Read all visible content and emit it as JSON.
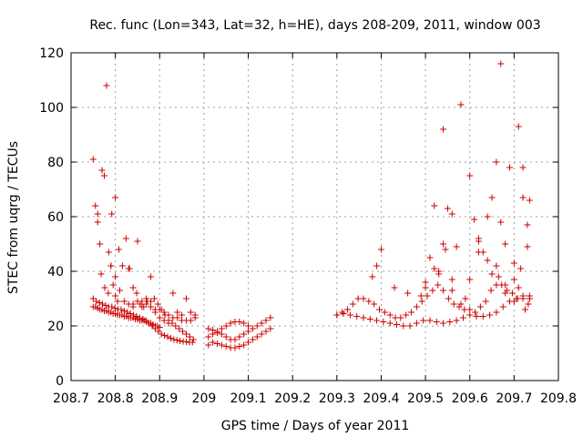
{
  "chart_data": {
    "type": "scatter",
    "title": "Rec. func (Lon=343, Lat=32, h=HE), days 208-209, 2011, window 003",
    "xlabel": "GPS time / Days of year 2011",
    "ylabel": "STEC from uqrg / TECUs",
    "xlim": [
      208.7,
      209.8
    ],
    "ylim": [
      0,
      120
    ],
    "xticks": [
      "208.7",
      "208.8",
      "208.9",
      "209",
      "209.1",
      "209.2",
      "209.3",
      "209.4",
      "209.5",
      "209.6",
      "209.7",
      "209.8"
    ],
    "yticks": [
      "0",
      "20",
      "40",
      "60",
      "80",
      "100",
      "120"
    ],
    "grid": true,
    "marker": "+",
    "color": "#cc0000",
    "series": [
      {
        "x": [
          208.75,
          208.755,
          208.76,
          208.765,
          208.77,
          208.775,
          208.78,
          208.785,
          208.79,
          208.795,
          208.8,
          208.805,
          208.81,
          208.815,
          208.82,
          208.825,
          208.83,
          208.835,
          208.84,
          208.845,
          208.85,
          208.855,
          208.86,
          208.865,
          208.87,
          208.875,
          208.88,
          208.885,
          208.89,
          208.895,
          208.9
        ],
        "y": [
          27,
          27,
          26.5,
          26,
          26,
          25.5,
          25.5,
          25,
          25,
          24.5,
          24.5,
          24,
          24,
          24,
          23.5,
          23.5,
          23,
          23,
          23,
          22.5,
          22.5,
          22,
          22,
          22,
          21.5,
          21,
          21,
          20.5,
          20,
          20,
          19.5
        ]
      },
      {
        "x": [
          208.75,
          208.757,
          208.764,
          208.771,
          208.778,
          208.785,
          208.792,
          208.799,
          208.806,
          208.813,
          208.82,
          208.827,
          208.834,
          208.841,
          208.848,
          208.855,
          208.862,
          208.869,
          208.876,
          208.883,
          208.89,
          208.897,
          208.904,
          208.911,
          208.918,
          208.925,
          208.932,
          208.939,
          208.946,
          208.953,
          208.96,
          208.967,
          208.974
        ],
        "y": [
          30,
          29,
          28.5,
          28,
          27.5,
          27,
          27,
          26.5,
          26,
          26,
          25.5,
          25,
          24.5,
          24,
          23.5,
          23,
          22.5,
          22,
          21,
          20,
          19,
          18,
          17,
          16.5,
          16,
          15.5,
          15,
          14.8,
          14.5,
          14.3,
          14.2,
          14,
          14
        ]
      },
      {
        "x": [
          208.75,
          208.755,
          208.76,
          208.765,
          208.77,
          208.775,
          208.78,
          208.785,
          208.79,
          208.795,
          208.8,
          208.805
        ],
        "y": [
          81,
          64,
          58,
          50,
          77,
          75,
          108,
          47,
          42,
          35,
          31,
          29
        ]
      },
      {
        "x": [
          208.76,
          208.768,
          208.776,
          208.784,
          208.792,
          208.8,
          208.808,
          208.816,
          208.824,
          208.832,
          208.84,
          208.848,
          208.856,
          208.864,
          208.872,
          208.88,
          208.888,
          208.896,
          208.904,
          208.912,
          208.92,
          208.928,
          208.936,
          208.944,
          208.952,
          208.96,
          208.968,
          208.976
        ],
        "y": [
          61,
          39,
          34,
          32,
          61,
          67,
          48,
          42,
          52,
          41,
          34,
          32,
          28,
          27,
          29,
          38,
          30,
          28,
          26,
          24,
          22,
          21,
          20,
          19,
          18,
          17,
          16,
          15
        ]
      },
      {
        "x": [
          208.79,
          208.8,
          208.81,
          208.82,
          208.83,
          208.84,
          208.85,
          208.86,
          208.87,
          208.88,
          208.89,
          208.9,
          208.91,
          208.92,
          208.93,
          208.94,
          208.95,
          208.96,
          208.97,
          208.98
        ],
        "y": [
          42,
          38,
          33,
          29,
          28,
          27,
          51,
          29,
          28,
          27,
          25,
          23,
          22,
          21,
          32,
          25,
          24,
          30,
          22,
          23
        ]
      },
      {
        "x": [
          208.83,
          208.84,
          208.85,
          208.86,
          208.87,
          208.88,
          208.89,
          208.9,
          208.91,
          208.92,
          208.93,
          208.94,
          208.95,
          208.96,
          208.97,
          208.98
        ],
        "y": [
          41,
          28,
          29,
          27,
          30,
          29,
          26,
          26,
          25,
          24,
          23,
          23,
          22,
          22,
          25,
          24
        ]
      },
      {
        "x": [
          209.01,
          209.02,
          209.03,
          209.04,
          209.05,
          209.06,
          209.07,
          209.08,
          209.09,
          209.1,
          209.11,
          209.12,
          209.13,
          209.14,
          209.15
        ],
        "y": [
          13,
          14,
          13.5,
          13,
          12.5,
          12,
          12,
          12.5,
          13,
          14,
          15,
          16,
          17,
          18,
          19
        ]
      },
      {
        "x": [
          209.01,
          209.02,
          209.03,
          209.04,
          209.05,
          209.06,
          209.07,
          209.08,
          209.09,
          209.1,
          209.11,
          209.12,
          209.13,
          209.14,
          209.15
        ],
        "y": [
          16,
          17,
          18,
          19,
          20,
          21,
          21.5,
          21.5,
          21,
          20,
          19,
          20,
          21,
          22,
          23
        ]
      },
      {
        "x": [
          209.01,
          209.02,
          209.03,
          209.04,
          209.05,
          209.06,
          209.07,
          209.08,
          209.09,
          209.1
        ],
        "y": [
          19,
          18.5,
          17.5,
          17,
          16,
          15,
          15,
          16,
          17,
          18
        ]
      },
      {
        "x": [
          209.3,
          209.315,
          209.33,
          209.345,
          209.36,
          209.375,
          209.39,
          209.405,
          209.42,
          209.435,
          209.45,
          209.465,
          209.48,
          209.495,
          209.51,
          209.525,
          209.54,
          209.555,
          209.57,
          209.585,
          209.6,
          209.615,
          209.63,
          209.645,
          209.66,
          209.675,
          209.69,
          209.705,
          209.72,
          209.735
        ],
        "y": [
          24,
          24.5,
          24,
          23.5,
          23,
          22.5,
          22,
          21.5,
          21,
          20.5,
          20,
          20,
          21,
          22,
          22,
          21.5,
          21,
          21.5,
          22,
          23,
          24,
          23.5,
          23.5,
          24,
          25,
          27,
          29,
          30,
          31,
          30
        ]
      },
      {
        "x": [
          209.3,
          209.312,
          209.324,
          209.336,
          209.348,
          209.36,
          209.372,
          209.384,
          209.396,
          209.408,
          209.42,
          209.432,
          209.444,
          209.456,
          209.468,
          209.48,
          209.492,
          209.504,
          209.516,
          209.528,
          209.54,
          209.552,
          209.564,
          209.576,
          209.588,
          209.6,
          209.612,
          209.624,
          209.636,
          209.648,
          209.66,
          209.672,
          209.684,
          209.696,
          209.708,
          209.72,
          209.732
        ],
        "y": [
          24,
          25,
          26,
          28,
          30,
          30,
          29,
          28,
          26,
          25,
          24,
          23,
          23,
          24,
          25,
          27,
          29,
          31,
          33,
          35,
          33,
          30,
          28,
          27,
          26,
          26,
          25,
          27,
          29,
          33,
          35,
          35,
          33,
          32,
          30,
          30,
          28
        ]
      },
      {
        "x": [
          209.38,
          209.39,
          209.4,
          209.43,
          209.46,
          209.49,
          209.5,
          209.51,
          209.52,
          209.53,
          209.54,
          209.55,
          209.56,
          209.57,
          209.58,
          209.59,
          209.6,
          209.61,
          209.62,
          209.63,
          209.64,
          209.65,
          209.66,
          209.67,
          209.68,
          209.69,
          209.7,
          209.71,
          209.72,
          209.73
        ],
        "y": [
          38,
          42,
          48,
          34,
          32,
          31,
          36,
          45,
          64,
          40,
          92,
          63,
          61,
          49,
          101,
          30,
          75,
          59,
          52,
          47,
          60,
          67,
          80,
          58,
          50,
          78,
          43,
          93,
          67,
          49
        ]
      },
      {
        "x": [
          209.5,
          209.52,
          209.54,
          209.56,
          209.6,
          209.62,
          209.64,
          209.66,
          209.67,
          209.68,
          209.7,
          209.71,
          209.72,
          209.73,
          209.735
        ],
        "y": [
          34,
          41,
          50,
          37,
          37,
          51,
          44,
          42,
          116,
          35,
          37,
          34,
          78,
          57,
          66
        ]
      },
      {
        "x": [
          209.53,
          209.545,
          209.56,
          209.58,
          209.62,
          209.65,
          209.665,
          209.68,
          209.7,
          209.715,
          209.725,
          209.735
        ],
        "y": [
          39,
          48,
          33,
          28,
          47,
          39,
          38,
          32,
          29,
          41,
          26,
          31
        ]
      }
    ]
  }
}
